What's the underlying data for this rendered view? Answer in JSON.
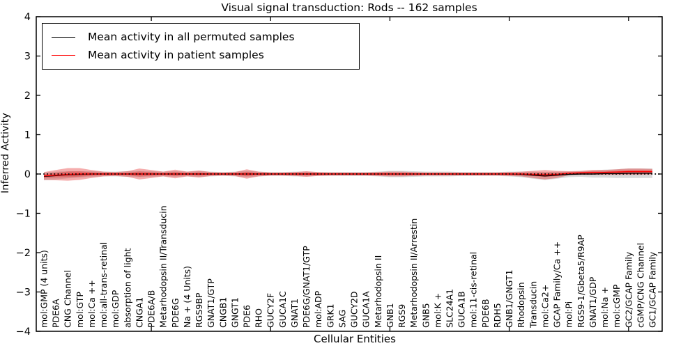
{
  "title": "Visual signal transduction: Rods -- 162 samples",
  "axes": {
    "xlabel": "Cellular Entities",
    "ylabel": "Inferred Activity"
  },
  "legend": {
    "items": [
      {
        "label": "Mean activity in all permuted samples",
        "color": "#000000"
      },
      {
        "label": "Mean activity in patient samples",
        "color": "#ff0000"
      }
    ],
    "position": "upper left"
  },
  "colors": {
    "permuted_line": "#000000",
    "permuted_band": "#888888",
    "patient_line": "#ff0000",
    "patient_band": "#e62828",
    "zero_line": "#000000",
    "frame": "#000000"
  },
  "chart_data": {
    "type": "line",
    "title": "Visual signal transduction: Rods -- 162 samples",
    "xlabel": "Cellular Entities",
    "ylabel": "Inferred Activity",
    "ylim": [
      -4,
      4
    ],
    "yticks": [
      4,
      3,
      2,
      1,
      0,
      -1,
      -2,
      -3,
      -4
    ],
    "xtick_marks_at_category_index": [
      9,
      19,
      29,
      39,
      49
    ],
    "grid": false,
    "legend_position": "upper left",
    "zero_line": {
      "y": 0,
      "style": "dotted",
      "color": "#000000"
    },
    "categories": [
      "mol:GMP (4 units)",
      "PDE6A",
      "CNG Channel",
      "mol:GTP",
      "mol:Ca ++",
      "mol:all-trans-retinal",
      "mol:GDP",
      "absorption of light",
      "CNGA1",
      "PDE6A/B",
      "Metarhodopsin II/Transducin",
      "PDE6G",
      "Na + (4 Units)",
      "RGS9BP",
      "GNAT1/GTP",
      "CNGB1",
      "GNGT1",
      "PDE6",
      "RHO",
      "GUCY2F",
      "GUCA1C",
      "GNAT1",
      "PDE6G/GNAT1/GTP",
      "mol:ADP",
      "GRK1",
      "SAG",
      "GUCY2D",
      "GUCA1A",
      "Metarhodopsin II",
      "GNB1",
      "RGS9",
      "Metarhodopsin II/Arrestin",
      "GNB5",
      "mol:K +",
      "SLC24A1",
      "GUCA1B",
      "mol:11-cis-retinal",
      "PDE6B",
      "RDH5",
      "GNB1/GNGT1",
      "Rhodopsin",
      "Transducin",
      "mol:Ca2+",
      "GCAP Family/Ca ++",
      "mol:Pi",
      "RGS9-1/Gbeta5/R9AP",
      "GNAT1/GDP",
      "mol:Na +",
      "mol:cGMP",
      "GC2/GCAP Family",
      "cGMP/CNG Channel",
      "GC1/GCAP Family"
    ],
    "series": [
      {
        "name": "Mean activity in all permuted samples",
        "color": "#000000",
        "band_color": "#888888",
        "values": [
          -0.06,
          -0.04,
          -0.02,
          -0.01,
          0,
          0,
          0,
          0,
          0,
          0,
          0,
          0,
          0,
          0,
          0,
          0,
          0,
          0,
          0,
          0,
          0,
          0,
          0,
          0,
          0,
          0,
          0,
          0,
          0,
          0,
          0,
          0,
          0,
          0,
          0,
          0,
          0,
          0,
          0,
          0,
          -0.01,
          -0.03,
          -0.05,
          -0.03,
          -0.01,
          0,
          0,
          0.01,
          0.01,
          0.02,
          0.02,
          0.02
        ],
        "band_halfwidth": [
          0.1,
          0.1,
          0.09,
          0.08,
          0.07,
          0.06,
          0.06,
          0.07,
          0.08,
          0.07,
          0.06,
          0.07,
          0.06,
          0.07,
          0.06,
          0.05,
          0.06,
          0.08,
          0.06,
          0.05,
          0.05,
          0.06,
          0.06,
          0.05,
          0.05,
          0.05,
          0.05,
          0.05,
          0.06,
          0.08,
          0.08,
          0.07,
          0.06,
          0.06,
          0.06,
          0.05,
          0.05,
          0.05,
          0.05,
          0.06,
          0.07,
          0.09,
          0.1,
          0.09,
          0.07,
          0.07,
          0.09,
          0.1,
          0.11,
          0.12,
          0.12,
          0.12
        ]
      },
      {
        "name": "Mean activity in patient samples",
        "color": "#ff0000",
        "band_color": "#e62828",
        "values": [
          -0.05,
          -0.03,
          -0.01,
          0,
          0,
          0,
          0,
          0,
          0,
          0,
          0,
          0,
          0,
          0,
          0,
          0,
          0,
          0,
          0,
          0,
          0,
          0,
          0,
          0,
          0,
          0,
          0,
          0,
          0,
          0,
          0,
          0,
          0,
          0,
          0,
          0,
          0,
          0,
          0,
          0,
          0,
          -0.01,
          -0.02,
          -0.01,
          0.02,
          0.03,
          0.04,
          0.04,
          0.05,
          0.06,
          0.06,
          0.06
        ],
        "band_halfwidth": [
          0.1,
          0.13,
          0.16,
          0.15,
          0.1,
          0.06,
          0.05,
          0.07,
          0.14,
          0.1,
          0.06,
          0.11,
          0.06,
          0.09,
          0.05,
          0.04,
          0.05,
          0.12,
          0.06,
          0.04,
          0.04,
          0.05,
          0.07,
          0.05,
          0.04,
          0.04,
          0.04,
          0.04,
          0.05,
          0.06,
          0.06,
          0.05,
          0.04,
          0.04,
          0.04,
          0.04,
          0.04,
          0.04,
          0.04,
          0.05,
          0.06,
          0.09,
          0.12,
          0.09,
          0.05,
          0.05,
          0.06,
          0.06,
          0.07,
          0.08,
          0.08,
          0.07
        ]
      }
    ]
  }
}
